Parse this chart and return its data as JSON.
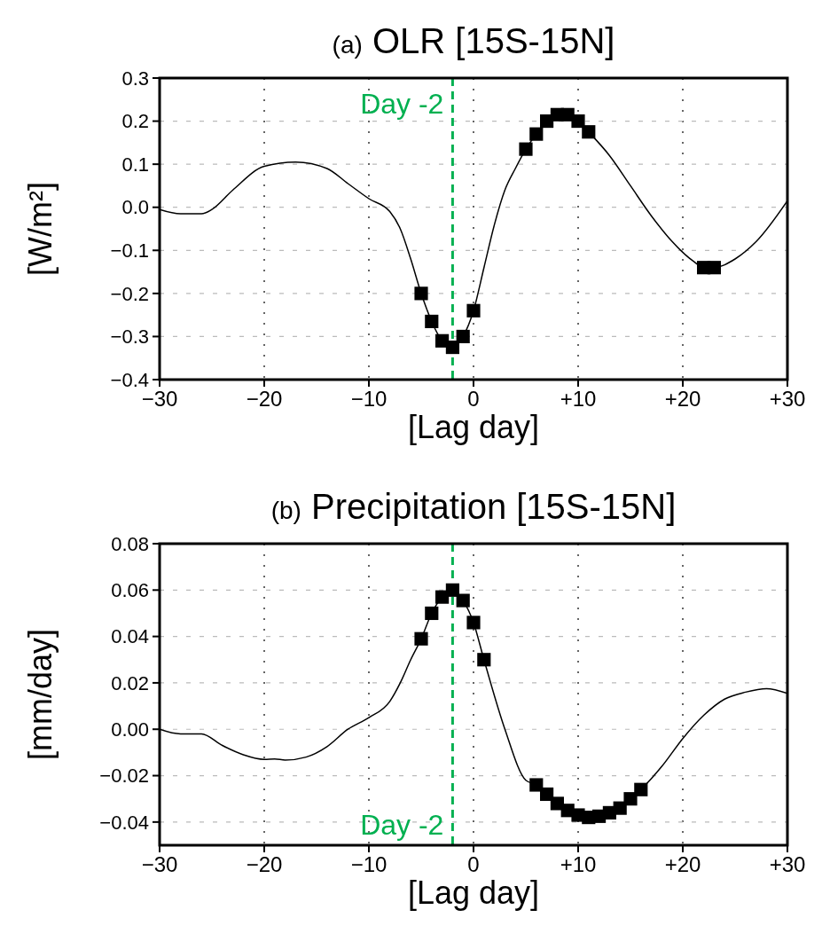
{
  "chart_data": [
    {
      "type": "line",
      "title": "(a) OLR [15S-15N]",
      "xlabel": "[Lag day]",
      "ylabel": "[W/m²]",
      "xlim": [
        -30,
        30
      ],
      "xticks": [
        {
          "value": -30,
          "label": "−30"
        },
        {
          "value": -20,
          "label": "−20"
        },
        {
          "value": -10,
          "label": "−10"
        },
        0,
        {
          "value": 10,
          "label": "+10"
        },
        {
          "value": 20,
          "label": "+20"
        },
        {
          "value": 30,
          "label": "+30"
        }
      ],
      "ylim": [
        -0.4,
        0.3
      ],
      "yticks": [
        {
          "value": -0.4,
          "label": "−0.4"
        },
        {
          "value": -0.3,
          "label": "−0.3"
        },
        {
          "value": -0.2,
          "label": "−0.2"
        },
        {
          "value": -0.1,
          "label": "−0.1"
        },
        {
          "value": 0,
          "label": "0.0"
        },
        0.1,
        0.2,
        0.3
      ],
      "grid": true,
      "series": [
        {
          "color": "#000000",
          "marker": "none",
          "line_style": "solid",
          "x": [
            -30,
            -28,
            -26,
            -25,
            -23,
            -20,
            -17,
            -14,
            -12,
            -10,
            -8,
            -7,
            -6,
            -5,
            -4,
            -3,
            -2,
            -1,
            0,
            1,
            2,
            3,
            4,
            5,
            6,
            7,
            8,
            9,
            10,
            11,
            13,
            15,
            17,
            19,
            21,
            22,
            23,
            25,
            27,
            30
          ],
          "values": [
            -0.005,
            -0.015,
            -0.015,
            -0.005,
            0.04,
            0.095,
            0.105,
            0.09,
            0.055,
            0.02,
            -0.01,
            -0.05,
            -0.12,
            -0.2,
            -0.265,
            -0.31,
            -0.325,
            -0.3,
            -0.24,
            -0.14,
            -0.04,
            0.04,
            0.09,
            0.135,
            0.17,
            0.2,
            0.215,
            0.215,
            0.2,
            0.175,
            0.12,
            0.05,
            -0.02,
            -0.08,
            -0.125,
            -0.14,
            -0.14,
            -0.12,
            -0.08,
            0.015
          ]
        },
        {
          "type": "scatter",
          "color": "#000000",
          "marker": "square",
          "x": [
            -5,
            -4,
            -3,
            -2,
            -1,
            0,
            5,
            6,
            7,
            8,
            9,
            10,
            11,
            22,
            23
          ],
          "values": [
            -0.2,
            -0.265,
            -0.31,
            -0.325,
            -0.3,
            -0.24,
            0.135,
            0.17,
            0.2,
            0.215,
            0.215,
            0.2,
            0.175,
            -0.14,
            -0.14
          ]
        }
      ],
      "ref_lines": [
        {
          "axis": "x",
          "value": -2,
          "label": "Day -2",
          "color": "#00b050",
          "line_style": "dashed"
        }
      ]
    },
    {
      "type": "line",
      "title": "(b) Precipitation [15S-15N]",
      "xlabel": "[Lag day]",
      "ylabel": "[mm/day]",
      "xlim": [
        -30,
        30
      ],
      "xticks": [
        {
          "value": -30,
          "label": "−30"
        },
        {
          "value": -20,
          "label": "−20"
        },
        {
          "value": -10,
          "label": "−10"
        },
        0,
        {
          "value": 10,
          "label": "+10"
        },
        {
          "value": 20,
          "label": "+20"
        },
        {
          "value": 30,
          "label": "+30"
        }
      ],
      "ylim": [
        -0.05,
        0.08
      ],
      "yticks": [
        {
          "value": -0.04,
          "label": "−0.04"
        },
        {
          "value": -0.02,
          "label": "−0.02"
        },
        {
          "value": 0,
          "label": "0.00"
        },
        {
          "value": 0.02,
          "label": "0.02"
        },
        {
          "value": 0.04,
          "label": "0.04"
        },
        {
          "value": 0.06,
          "label": "0.06"
        },
        {
          "value": 0.08,
          "label": "0.08"
        }
      ],
      "grid": true,
      "series": [
        {
          "color": "#000000",
          "marker": "none",
          "line_style": "solid",
          "x": [
            -30,
            -28,
            -26,
            -24,
            -22,
            -20,
            -19,
            -18,
            -16,
            -14,
            -12,
            -10,
            -8,
            -7,
            -6,
            -5,
            -4,
            -3,
            -2,
            -1,
            0,
            1,
            3,
            5,
            6,
            7,
            8,
            9,
            10,
            11,
            12,
            13,
            14,
            15,
            16,
            18,
            20,
            22,
            24,
            26,
            28,
            30
          ],
          "values": [
            0.0,
            -0.002,
            -0.002,
            -0.007,
            -0.011,
            -0.013,
            -0.0128,
            -0.0133,
            -0.012,
            -0.0075,
            0.0,
            0.005,
            0.012,
            0.02,
            0.03,
            0.039,
            0.05,
            0.057,
            0.06,
            0.0555,
            0.046,
            0.03,
            0.0,
            -0.022,
            -0.024,
            -0.028,
            -0.032,
            -0.035,
            -0.037,
            -0.038,
            -0.0375,
            -0.036,
            -0.034,
            -0.03,
            -0.026,
            -0.016,
            -0.004,
            0.006,
            0.013,
            0.016,
            0.0175,
            0.0155
          ]
        },
        {
          "type": "scatter",
          "color": "#000000",
          "marker": "square",
          "x": [
            -5,
            -4,
            -3,
            -2,
            -1,
            0,
            1,
            6,
            7,
            8,
            9,
            10,
            11,
            12,
            13,
            14,
            15,
            16
          ],
          "values": [
            0.039,
            0.05,
            0.057,
            0.06,
            0.0555,
            0.046,
            0.03,
            -0.024,
            -0.028,
            -0.032,
            -0.035,
            -0.037,
            -0.038,
            -0.0375,
            -0.036,
            -0.034,
            -0.03,
            -0.026
          ]
        }
      ],
      "ref_lines": [
        {
          "axis": "x",
          "value": -2,
          "label": "Day -2",
          "color": "#00b050",
          "line_style": "dashed"
        }
      ]
    }
  ]
}
